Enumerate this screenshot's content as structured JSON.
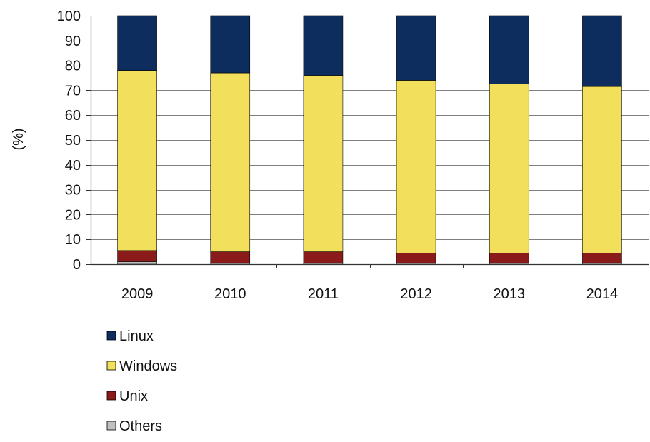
{
  "chart_data": {
    "type": "bar",
    "stacked": true,
    "title": "",
    "xlabel": "",
    "ylabel": "(%)",
    "ylim": [
      0,
      100
    ],
    "yticks": [
      0,
      10,
      20,
      30,
      40,
      50,
      60,
      70,
      80,
      90,
      100
    ],
    "grid": true,
    "legend_position": "bottom-left",
    "categories": [
      "2009",
      "2010",
      "2011",
      "2012",
      "2013",
      "2014"
    ],
    "series": [
      {
        "name": "Others",
        "color": "#c0c0c0",
        "values": [
          1,
          0.5,
          0.5,
          0.5,
          0.5,
          0.5
        ]
      },
      {
        "name": "Unix",
        "color": "#8b1a1a",
        "values": [
          4.5,
          4.5,
          4.5,
          4,
          4,
          4
        ]
      },
      {
        "name": "Windows",
        "color": "#f2df5c",
        "values": [
          72.5,
          72,
          71,
          69.5,
          68,
          67
        ]
      },
      {
        "name": "Linux",
        "color": "#0d2d5e",
        "values": [
          22,
          23,
          24,
          26,
          27.5,
          28.5
        ]
      }
    ],
    "legend_order": [
      "Linux",
      "Windows",
      "Unix",
      "Others"
    ]
  }
}
